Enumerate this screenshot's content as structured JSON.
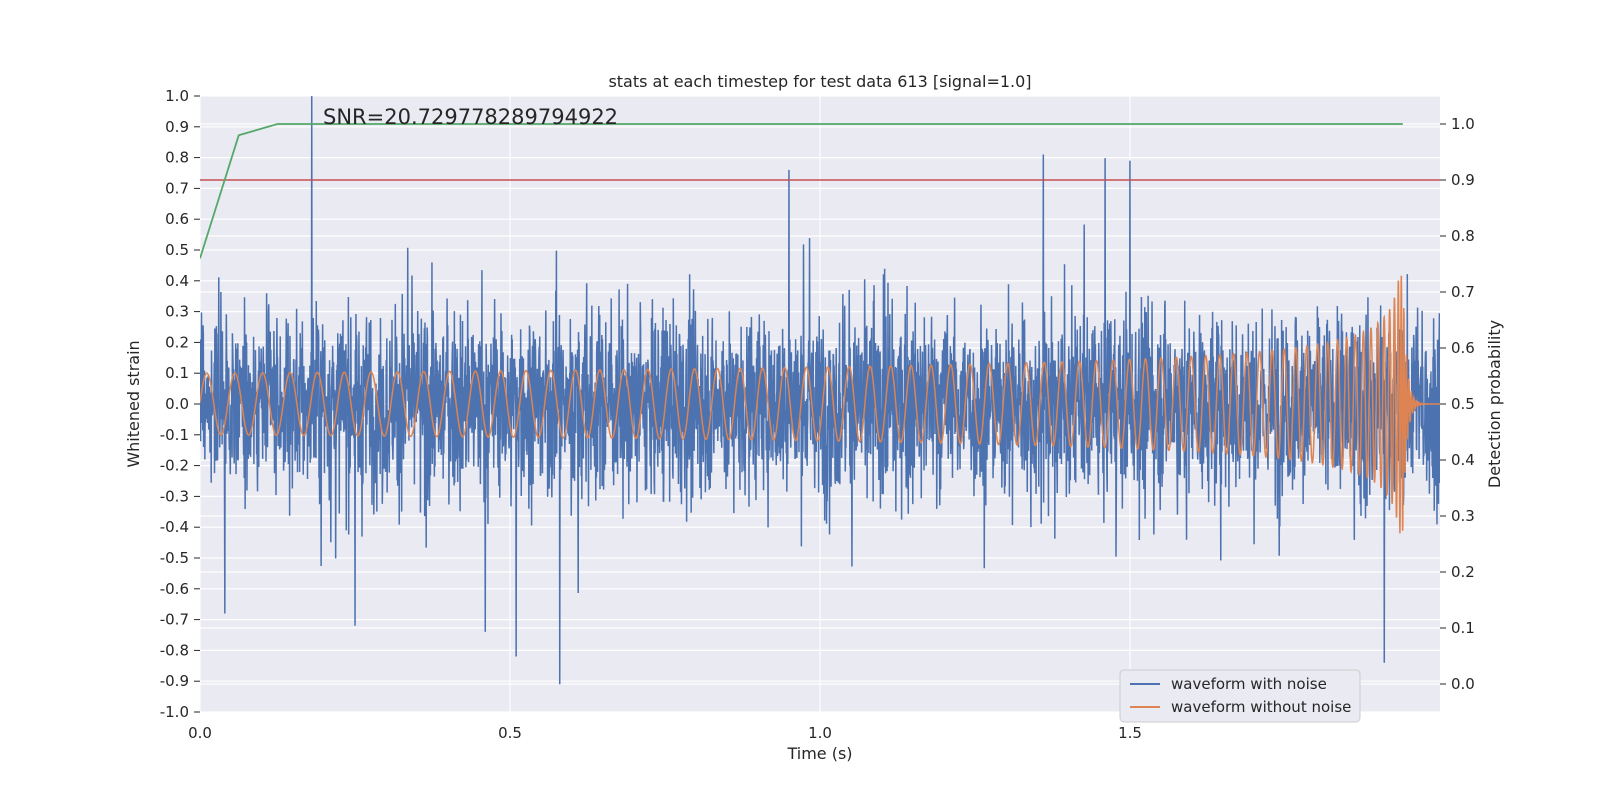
{
  "chart_data": {
    "type": "line",
    "title": "stats at each timestep for test data 613 [signal=1.0]",
    "annotation": "SNR=20.729778289794922",
    "xlabel": "Time (s)",
    "ylabel_left": "Whitened strain",
    "ylabel_right": "Detection probability",
    "xlim": [
      0.0,
      2.0
    ],
    "ylim_left": [
      -1.0,
      1.0
    ],
    "ylim_right": [
      -0.05,
      1.05
    ],
    "x_ticks": [
      "0.0",
      "0.5",
      "1.0",
      "1.5"
    ],
    "x_tick_values": [
      0.0,
      0.5,
      1.0,
      1.5
    ],
    "y_ticks_left": [
      "-1.0",
      "-0.9",
      "-0.8",
      "-0.7",
      "-0.6",
      "-0.5",
      "-0.4",
      "-0.3",
      "-0.2",
      "-0.1",
      "0.0",
      "0.1",
      "0.2",
      "0.3",
      "0.4",
      "0.5",
      "0.6",
      "0.7",
      "0.8",
      "0.9",
      "1.0"
    ],
    "y_tick_values_left": [
      -1.0,
      -0.9,
      -0.8,
      -0.7,
      -0.6,
      -0.5,
      -0.4,
      -0.3,
      -0.2,
      -0.1,
      0.0,
      0.1,
      0.2,
      0.3,
      0.4,
      0.5,
      0.6,
      0.7,
      0.8,
      0.9,
      1.0
    ],
    "y_ticks_right": [
      "0.0",
      "0.1",
      "0.2",
      "0.3",
      "0.4",
      "0.5",
      "0.6",
      "0.7",
      "0.8",
      "0.9",
      "1.0"
    ],
    "y_tick_values_right": [
      0.0,
      0.1,
      0.2,
      0.3,
      0.4,
      0.5,
      0.6,
      0.7,
      0.8,
      0.9,
      1.0
    ],
    "grid": true,
    "legend_position": "lower-right",
    "series": [
      {
        "name": "waveform with noise",
        "axis": "left",
        "color": "#4c72b0",
        "samples": 4096,
        "x_range": [
          0.0,
          2.0
        ],
        "typical_range": [
          -0.45,
          0.45
        ],
        "spikes": [
          {
            "x": 0.18,
            "y": 1.0
          },
          {
            "x": 0.58,
            "y": -0.91
          },
          {
            "x": 0.51,
            "y": -0.82
          },
          {
            "x": 1.36,
            "y": 0.81
          },
          {
            "x": 1.5,
            "y": 0.79
          },
          {
            "x": 0.95,
            "y": 0.76
          },
          {
            "x": 1.91,
            "y": -0.84
          },
          {
            "x": 0.25,
            "y": -0.72
          },
          {
            "x": 0.46,
            "y": -0.74
          },
          {
            "x": 0.04,
            "y": -0.68
          }
        ]
      },
      {
        "name": "waveform without noise",
        "axis": "left",
        "color": "#dd8452",
        "type": "chirp",
        "start_amplitude": 0.1,
        "peak_amplitude": 0.42,
        "merger_time": 1.94,
        "end_time": 2.0
      },
      {
        "axis": "right",
        "color": "#55a868",
        "x": [
          0.0,
          0.0625,
          0.125,
          0.1875,
          0.25,
          0.5,
          1.0,
          1.5,
          1.94
        ],
        "y": [
          0.76,
          0.98,
          1.0,
          1.0,
          1.0,
          1.0,
          1.0,
          1.0,
          1.0
        ]
      },
      {
        "type": "hline",
        "axis": "right",
        "color": "#c44e52",
        "y": 0.9
      }
    ]
  }
}
